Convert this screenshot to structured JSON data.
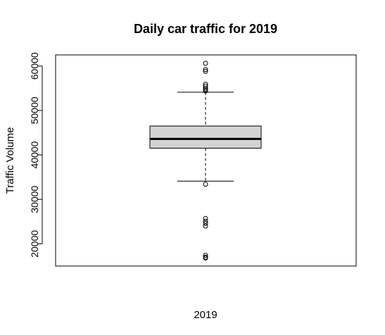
{
  "chart_data": {
    "type": "boxplot",
    "title": "Daily car traffic for 2019",
    "ylabel": "Traffic Volume",
    "xlabel": "2019",
    "ylim": [
      15000,
      62500
    ],
    "yticks": [
      20000,
      30000,
      40000,
      50000,
      60000
    ],
    "yticks_labels": [
      "20000",
      "30000",
      "40000",
      "50000",
      "60000"
    ],
    "grid": false,
    "box": {
      "whisker_low": 34100,
      "q1": 41500,
      "median": 43600,
      "q3": 46500,
      "whisker_high": 54100,
      "fill": "#d3d3d3"
    },
    "outliers": [
      60600,
      59200,
      58800,
      55900,
      55500,
      55000,
      54700,
      54400,
      33400,
      25700,
      25100,
      24600,
      24000,
      17400,
      17000,
      16800
    ]
  }
}
